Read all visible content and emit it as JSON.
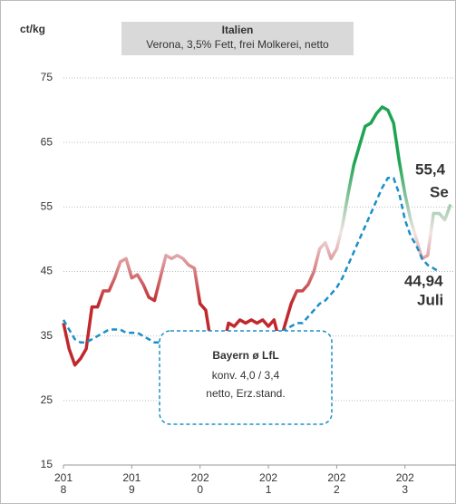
{
  "chart_data": {
    "type": "line",
    "y_label": "ct/kg",
    "title": "Italien",
    "subtitle": "Verona, 3,5% Fett, frei Molkerei, netto",
    "xlim": [
      2018,
      2023.76
    ],
    "xticks": [
      2018,
      2019,
      2020,
      2021,
      2022,
      2023
    ],
    "ylim": [
      15,
      75
    ],
    "yticks": [
      15,
      25,
      35,
      45,
      55,
      65,
      75
    ],
    "grid": true,
    "x": [
      2018,
      2018.083,
      2018.167,
      2018.25,
      2018.333,
      2018.417,
      2018.5,
      2018.583,
      2018.667,
      2018.75,
      2018.833,
      2018.917,
      2019,
      2019.083,
      2019.167,
      2019.25,
      2019.333,
      2019.417,
      2019.5,
      2019.583,
      2019.667,
      2019.75,
      2019.833,
      2019.917,
      2020,
      2020.083,
      2020.167,
      2020.25,
      2020.333,
      2020.417,
      2020.5,
      2020.583,
      2020.667,
      2020.75,
      2020.833,
      2020.917,
      2021,
      2021.083,
      2021.167,
      2021.25,
      2021.333,
      2021.417,
      2021.5,
      2021.583,
      2021.667,
      2021.75,
      2021.833,
      2021.917,
      2022,
      2022.083,
      2022.167,
      2022.25,
      2022.333,
      2022.417,
      2022.5,
      2022.583,
      2022.667,
      2022.75,
      2022.833,
      2022.917,
      2023,
      2023.083,
      2023.167,
      2023.25,
      2023.333,
      2023.417,
      2023.5,
      2023.583,
      2023.667
    ],
    "series": [
      {
        "color_scale": [
          {
            "value": 40,
            "color": "#c0282d"
          },
          {
            "value": 51,
            "color": "#f1e4e4"
          },
          {
            "value": 62,
            "color": "#1ea453"
          }
        ],
        "dash": false,
        "values": [
          37,
          33,
          30.5,
          31.5,
          33,
          39.5,
          39.5,
          42,
          42,
          44,
          46.5,
          47,
          44,
          44.5,
          43,
          41,
          40.5,
          44,
          47.5,
          47,
          47.5,
          47,
          46,
          45.5,
          40,
          39,
          33.5,
          32,
          33,
          37,
          36.5,
          37.5,
          37,
          37.5,
          37,
          37.5,
          36.5,
          37.5,
          34,
          37,
          40,
          42,
          42,
          43,
          45,
          48.5,
          49.5,
          47,
          48.5,
          52,
          57,
          61.5,
          64.5,
          67.5,
          68,
          69.5,
          70.5,
          70,
          68,
          62,
          57,
          53,
          50,
          47,
          47.5,
          54,
          54,
          53,
          55.4
        ]
      },
      {
        "color": "#1a8fc9",
        "dash": true,
        "values": [
          37.5,
          36,
          34.5,
          34,
          34,
          34.5,
          35,
          35.5,
          36,
          36,
          36,
          35.5,
          35.5,
          35.5,
          35,
          34.5,
          34,
          34,
          34,
          34,
          34,
          34,
          34.5,
          34.5,
          34.5,
          34,
          33.5,
          33,
          33,
          33,
          33.5,
          33.5,
          34,
          34,
          34,
          34.5,
          34.5,
          35,
          35.5,
          36,
          36.5,
          37,
          37,
          38,
          39,
          40,
          40.5,
          41.5,
          42.5,
          44,
          46,
          48,
          50,
          52,
          54,
          56,
          58,
          59.5,
          59.5,
          57,
          53,
          50.5,
          49,
          47,
          46,
          45.5,
          44.94,
          null,
          null
        ]
      }
    ],
    "annotations": [
      {
        "text": "55,4",
        "color": "#1ea453"
      },
      {
        "text": "Se",
        "color": "#1ea453"
      },
      {
        "text": "44,94",
        "color": "#2ab5e8"
      },
      {
        "text": "Juli",
        "color": "#2ab5e8"
      }
    ],
    "legend_box": {
      "title": "Bayern ø LfL",
      "lines": [
        "konv. 4,0 / 3,4",
        "netto, Erz.stand."
      ],
      "color": "#1a8fc9"
    }
  }
}
